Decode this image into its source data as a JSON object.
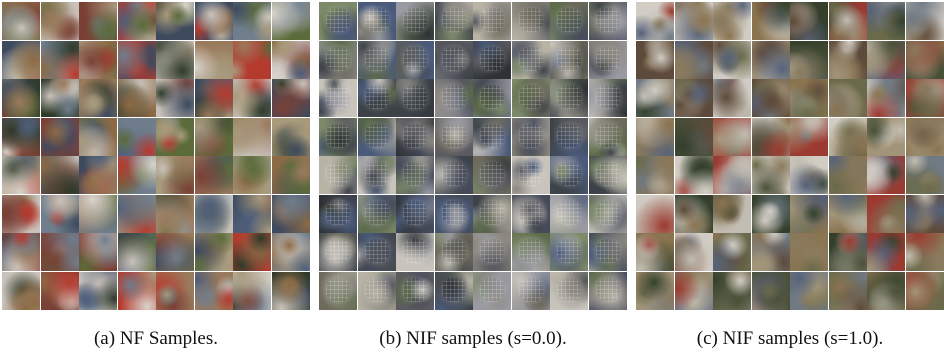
{
  "figure": {
    "panels": [
      {
        "caption": "(a) NF Samples.",
        "palette": [
          "#5b6b3a",
          "#9a7a5c",
          "#3d4a5e",
          "#c9c2bb",
          "#7a4036",
          "#b53a2e",
          "#6f7d8c",
          "#8c6a45",
          "#2f3a2a",
          "#d9d4cc",
          "#4e5e7a",
          "#a89a7d"
        ]
      },
      {
        "caption": "(b) NIF samples (s=0.0).",
        "palette": [
          "#5a5a60",
          "#8c8880",
          "#3c4248",
          "#b9b3a6",
          "#6e6a5c",
          "#4a5a7a",
          "#9a9aa2",
          "#2e3236",
          "#7d8a6a",
          "#c8c4bc",
          "#5c6b4a",
          "#444a5a"
        ]
      },
      {
        "caption": "(c) NIF samples (s=1.0).",
        "palette": [
          "#6a6a4a",
          "#8a7a5e",
          "#4a5038",
          "#c2bdb2",
          "#5e4a3a",
          "#9b3a30",
          "#707a84",
          "#8a7450",
          "#34402c",
          "#d2cdc4",
          "#56627a",
          "#a29478"
        ]
      }
    ]
  }
}
